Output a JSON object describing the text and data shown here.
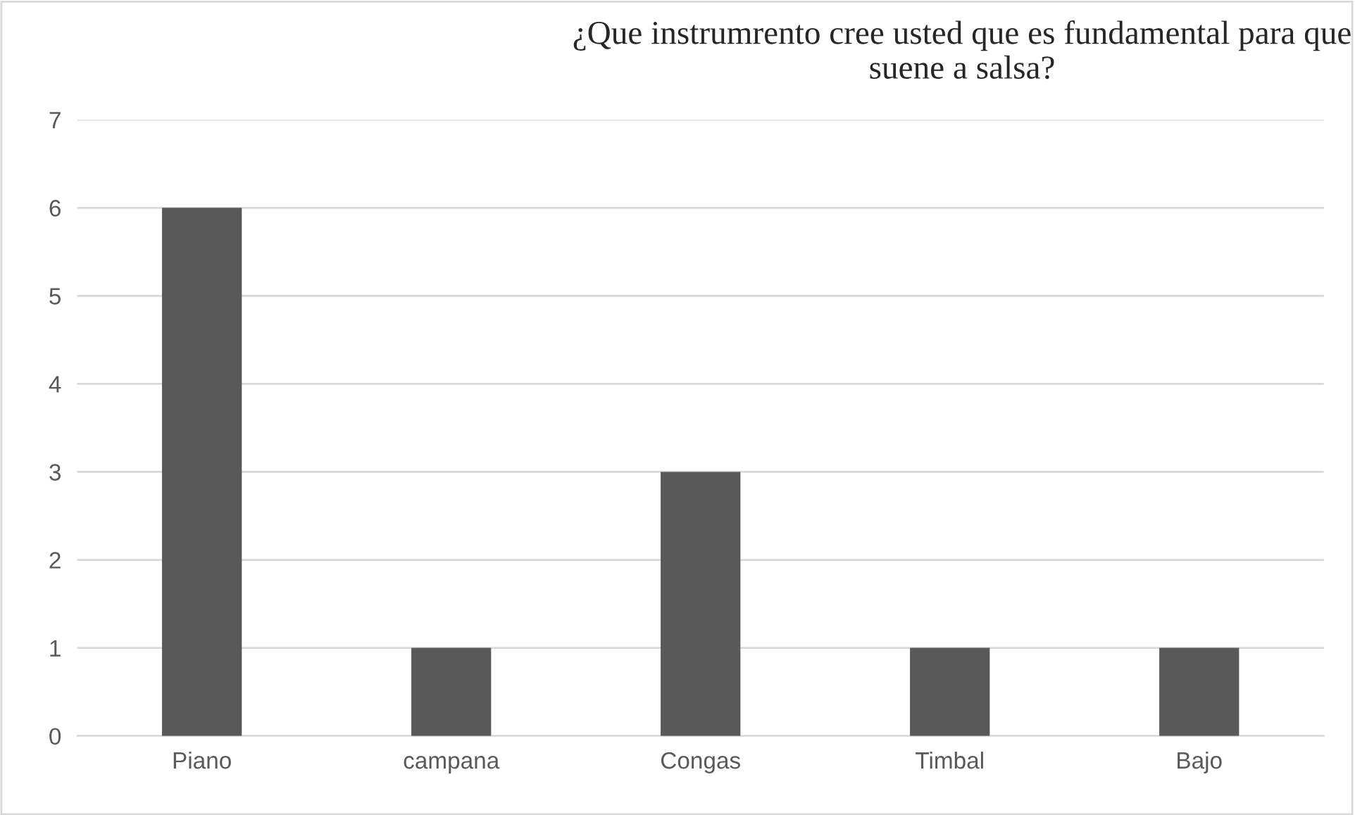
{
  "chart_data": {
    "type": "bar",
    "title": "¿Que instrumrento cree usted que es fundamental para que suene a salsa?",
    "categories": [
      "Piano",
      "campana",
      "Congas",
      "Timbal",
      "Bajo"
    ],
    "values": [
      6,
      1,
      3,
      1,
      1
    ],
    "color": "#595959",
    "ylim": [
      0,
      7
    ],
    "yticks": [
      0,
      1,
      2,
      3,
      4,
      5,
      6,
      7
    ],
    "grid": "y"
  }
}
